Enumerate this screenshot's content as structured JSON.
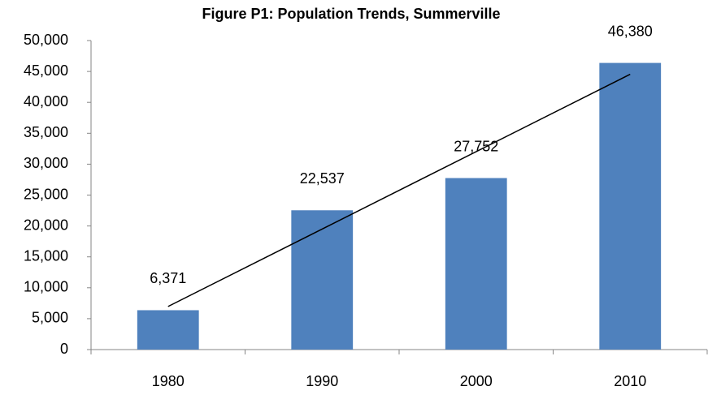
{
  "chart_data": {
    "type": "bar",
    "title": "Figure P1: Population Trends, Summerville",
    "categories": [
      "1980",
      "1990",
      "2000",
      "2010"
    ],
    "values": [
      6371,
      22537,
      27752,
      46380
    ],
    "value_labels": [
      "6,371",
      "22,537",
      "27,752",
      "46,380"
    ],
    "color": "#4f81bd",
    "trendline": "linear",
    "ylim": [
      0,
      50000
    ],
    "yticks": [
      0,
      {
        "value": 5000,
        "label": "5,000"
      },
      {
        "value": 10000,
        "label": "10,000"
      },
      {
        "value": 15000,
        "label": "15,000"
      },
      {
        "value": 20000,
        "label": "20,000"
      },
      {
        "value": 25000,
        "label": "25,000"
      },
      {
        "value": 30000,
        "label": "30,000"
      },
      {
        "value": 35000,
        "label": "35,000"
      },
      {
        "value": 40000,
        "label": "40,000"
      },
      {
        "value": 45000,
        "label": "45,000"
      },
      {
        "value": 50000,
        "label": "50,000"
      }
    ],
    "grid": false
  }
}
